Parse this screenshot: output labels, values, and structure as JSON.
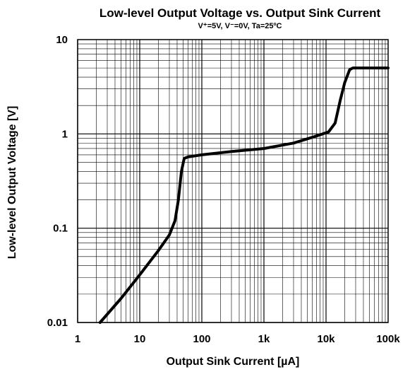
{
  "chart_data": {
    "type": "line",
    "title": "Low-level Output Voltage vs. Output Sink Current",
    "subtitle": "V⁺=5V, V⁻=0V, Ta=25ºC",
    "xlabel": "Output Sink Current [µA]",
    "ylabel": "Low-level Output Voltage [V]",
    "xscale": "log",
    "yscale": "log",
    "xlim": [
      1,
      100000
    ],
    "ylim": [
      0.01,
      10
    ],
    "grid": true,
    "x_tick_labels": [
      "1",
      "10",
      "100",
      "1k",
      "10k",
      "100k"
    ],
    "y_tick_labels": [
      "0.01",
      "0.1",
      "1",
      "10"
    ],
    "series": [
      {
        "color": "#000000",
        "points": [
          [
            2.3,
            0.01
          ],
          [
            5,
            0.018
          ],
          [
            10,
            0.032
          ],
          [
            20,
            0.058
          ],
          [
            30,
            0.085
          ],
          [
            37,
            0.12
          ],
          [
            42,
            0.2
          ],
          [
            47,
            0.4
          ],
          [
            52,
            0.55
          ],
          [
            60,
            0.57
          ],
          [
            100,
            0.6
          ],
          [
            300,
            0.65
          ],
          [
            1000,
            0.7
          ],
          [
            3000,
            0.8
          ],
          [
            7000,
            0.95
          ],
          [
            11000,
            1.05
          ],
          [
            14000,
            1.3
          ],
          [
            17000,
            2.3
          ],
          [
            20000,
            3.5
          ],
          [
            24000,
            4.8
          ],
          [
            27000,
            5.0
          ],
          [
            100000,
            5.0
          ]
        ]
      }
    ]
  }
}
